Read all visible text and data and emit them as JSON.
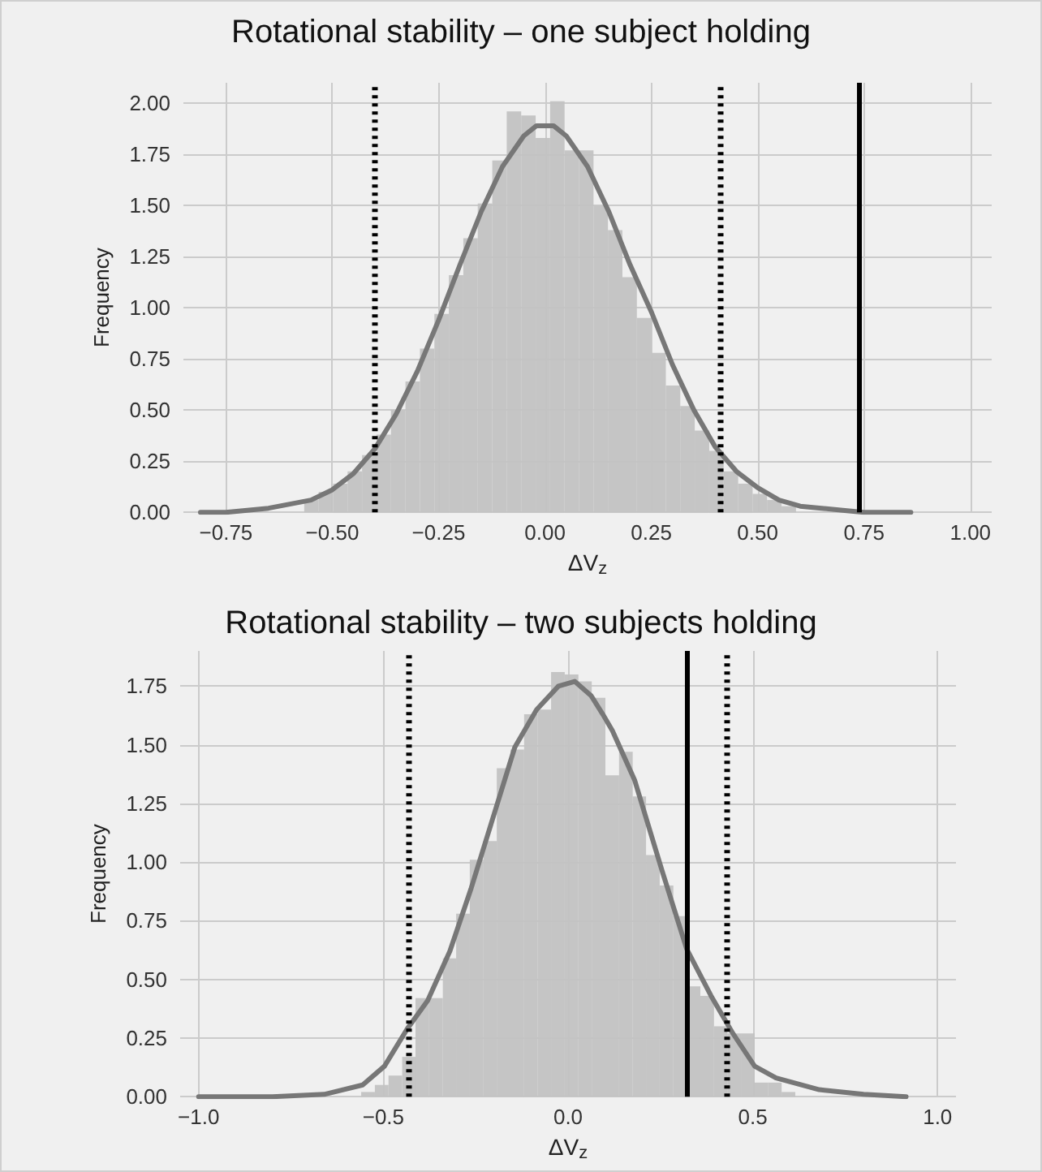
{
  "chart_data": [
    {
      "type": "histogram",
      "title": "Rotational stability – one subject holding",
      "xlabel": "ΔV$_{z}$",
      "ylabel": "Frequency",
      "color": "#c2c2c2",
      "bins": [
        -0.566,
        -0.532,
        -0.498,
        -0.464,
        -0.43,
        -0.396,
        -0.362,
        -0.328,
        -0.294,
        -0.26,
        -0.226,
        -0.192,
        -0.158,
        -0.124,
        -0.09,
        -0.056,
        -0.022,
        0.012,
        0.046,
        0.08,
        0.114,
        0.148,
        0.182,
        0.216,
        0.25,
        0.284,
        0.318,
        0.352,
        0.386,
        0.42,
        0.454,
        0.488,
        0.522,
        0.556,
        0.59
      ],
      "values": [
        0.06,
        0.1,
        0.14,
        0.2,
        0.28,
        0.38,
        0.5,
        0.64,
        0.8,
        0.97,
        1.16,
        1.34,
        1.51,
        1.72,
        1.96,
        1.94,
        1.83,
        2.01,
        1.77,
        1.77,
        1.5,
        1.38,
        1.15,
        0.95,
        0.78,
        0.62,
        0.52,
        0.4,
        0.3,
        0.2,
        0.14,
        0.09,
        0.06,
        0.03
      ],
      "series": [
        {
          "type": "line",
          "color": "#777777",
          "x": [
            -0.81,
            -0.75,
            -0.7,
            -0.65,
            -0.6,
            -0.55,
            -0.5,
            -0.45,
            -0.4,
            -0.35,
            -0.3,
            -0.25,
            -0.2,
            -0.15,
            -0.1,
            -0.05,
            -0.02,
            0.02,
            0.05,
            0.1,
            0.15,
            0.2,
            0.25,
            0.3,
            0.35,
            0.4,
            0.45,
            0.5,
            0.55,
            0.6,
            0.65,
            0.7,
            0.75,
            0.8,
            0.86
          ],
          "values": [
            0,
            0,
            0.01,
            0.02,
            0.04,
            0.06,
            0.11,
            0.19,
            0.31,
            0.48,
            0.69,
            0.94,
            1.21,
            1.47,
            1.69,
            1.84,
            1.89,
            1.89,
            1.84,
            1.69,
            1.47,
            1.21,
            0.98,
            0.72,
            0.5,
            0.32,
            0.2,
            0.12,
            0.06,
            0.03,
            0.02,
            0.01,
            0,
            0,
            0
          ]
        }
      ],
      "xlim": [
        -0.85,
        1.05
      ],
      "ylim": [
        0,
        2.1
      ],
      "xticks": [
        {
          "value": -0.75,
          "label": "−0.75"
        },
        {
          "value": -0.5,
          "label": "−0.50"
        },
        {
          "value": -0.25,
          "label": "−0.25"
        },
        {
          "value": 0,
          "label": "0.00"
        },
        {
          "value": 0.25,
          "label": "0.25"
        },
        {
          "value": 0.5,
          "label": "0.50"
        },
        {
          "value": 0.75,
          "label": "0.75"
        },
        {
          "value": 1,
          "label": "1.00"
        }
      ],
      "yticks": [
        {
          "value": 0,
          "label": "0.00"
        },
        {
          "value": 0.25,
          "label": "0.25"
        },
        {
          "value": 0.5,
          "label": "0.50"
        },
        {
          "value": 0.75,
          "label": "0.75"
        },
        {
          "value": 1,
          "label": "1.00"
        },
        {
          "value": 1.25,
          "label": "1.25"
        },
        {
          "value": 1.5,
          "label": "1.50"
        },
        {
          "value": 1.75,
          "label": "1.75"
        },
        {
          "value": 2,
          "label": "2.00"
        }
      ],
      "grid": true,
      "marker": "none",
      "ref_lines": [
        {
          "axis": "x",
          "value": -0.4,
          "color": "#000000",
          "line_style": "dotted"
        },
        {
          "axis": "x",
          "value": 0.41,
          "color": "#000000",
          "line_style": "dotted"
        },
        {
          "axis": "x",
          "value": 0.74,
          "color": "#000000",
          "line_style": "solid"
        }
      ]
    },
    {
      "type": "histogram",
      "title": "Rotational stability – two subjects holding",
      "xlabel": "ΔV$_{z}$",
      "ylabel": "Frequency",
      "color": "#c2c2c2",
      "bins": [
        -0.56,
        -0.523,
        -0.486,
        -0.449,
        -0.413,
        -0.376,
        -0.339,
        -0.303,
        -0.266,
        -0.229,
        -0.193,
        -0.156,
        -0.119,
        -0.082,
        -0.046,
        -0.009,
        0.028,
        0.064,
        0.101,
        0.138,
        0.175,
        0.211,
        0.248,
        0.285,
        0.321,
        0.358,
        0.395,
        0.431,
        0.468,
        0.505,
        0.542,
        0.578,
        0.615
      ],
      "values": [
        0.02,
        0.05,
        0.09,
        0.17,
        0.42,
        0.42,
        0.59,
        0.78,
        1.01,
        1.09,
        1.4,
        1.48,
        1.63,
        1.65,
        1.81,
        1.8,
        1.77,
        1.7,
        1.37,
        1.47,
        1.28,
        1.03,
        0.9,
        0.77,
        0.47,
        0.43,
        0.3,
        0.27,
        0.27,
        0.06,
        0.06,
        0.02
      ],
      "series": [
        {
          "type": "line",
          "color": "#777777",
          "x": [
            -1.0,
            -0.8,
            -0.66,
            -0.556,
            -0.497,
            -0.435,
            -0.38,
            -0.32,
            -0.262,
            -0.203,
            -0.144,
            -0.085,
            -0.026,
            0.018,
            0.062,
            0.094,
            0.12,
            0.18,
            0.255,
            0.321,
            0.387,
            0.446,
            0.505,
            0.563,
            0.68,
            0.8,
            0.915
          ],
          "values": [
            0,
            0,
            0.01,
            0.05,
            0.13,
            0.29,
            0.41,
            0.62,
            0.89,
            1.19,
            1.49,
            1.65,
            1.75,
            1.77,
            1.71,
            1.63,
            1.56,
            1.35,
            0.96,
            0.63,
            0.43,
            0.27,
            0.13,
            0.08,
            0.03,
            0.01,
            0
          ]
        }
      ],
      "xlim": [
        -1.05,
        1.05
      ],
      "ylim": [
        0,
        1.9
      ],
      "xticks": [
        {
          "value": -1,
          "label": "−1.0"
        },
        {
          "value": -0.5,
          "label": "−0.5"
        },
        {
          "value": 0,
          "label": "0.0"
        },
        {
          "value": 0.5,
          "label": "0.5"
        },
        {
          "value": 1,
          "label": "1.0"
        }
      ],
      "yticks": [
        {
          "value": 0,
          "label": "0.00"
        },
        {
          "value": 0.25,
          "label": "0.25"
        },
        {
          "value": 0.5,
          "label": "0.50"
        },
        {
          "value": 0.75,
          "label": "0.75"
        },
        {
          "value": 1,
          "label": "1.00"
        },
        {
          "value": 1.25,
          "label": "1.25"
        },
        {
          "value": 1.5,
          "label": "1.50"
        },
        {
          "value": 1.75,
          "label": "1.75"
        }
      ],
      "grid": true,
      "marker": "none",
      "ref_lines": [
        {
          "axis": "x",
          "value": -0.43,
          "color": "#000000",
          "line_style": "dotted"
        },
        {
          "axis": "x",
          "value": 0.43,
          "color": "#000000",
          "line_style": "dotted"
        },
        {
          "axis": "x",
          "value": 0.32,
          "color": "#000000",
          "line_style": "solid"
        }
      ]
    }
  ]
}
